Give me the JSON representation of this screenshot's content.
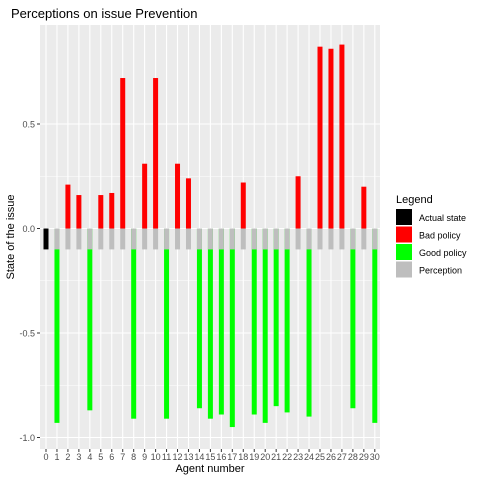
{
  "chart_data": {
    "type": "bar",
    "title": "Perceptions on issue Prevention",
    "xlabel": "Agent number",
    "ylabel": "State of the issue",
    "ylim": [
      -1.05,
      1.0
    ],
    "y_ticks": [
      {
        "value": 0.5,
        "label": "0.5"
      },
      {
        "value": 0.0,
        "label": "0.0"
      },
      {
        "value": -0.5,
        "label": "-0.5"
      },
      {
        "value": -1.0,
        "label": "-1.0"
      }
    ],
    "categories": [
      "0",
      "1",
      "2",
      "3",
      "4",
      "5",
      "6",
      "7",
      "8",
      "9",
      "10",
      "11",
      "12",
      "13",
      "14",
      "15",
      "16",
      "17",
      "18",
      "19",
      "20",
      "21",
      "22",
      "23",
      "24",
      "25",
      "26",
      "27",
      "28",
      "29",
      "30"
    ],
    "grid": true,
    "legend_position": "right",
    "legend_title": "Legend",
    "series": [
      {
        "name": "Actual state",
        "color": "#000000",
        "values": [
          -0.1,
          null,
          null,
          null,
          null,
          null,
          null,
          null,
          null,
          null,
          null,
          null,
          null,
          null,
          null,
          null,
          null,
          null,
          null,
          null,
          null,
          null,
          null,
          null,
          null,
          null,
          null,
          null,
          null,
          null,
          null
        ]
      },
      {
        "name": "Bad policy",
        "color": "#ff0000",
        "values": [
          null,
          null,
          0.21,
          0.16,
          null,
          0.16,
          0.17,
          0.72,
          null,
          0.31,
          0.72,
          null,
          0.31,
          0.24,
          null,
          null,
          null,
          null,
          0.22,
          null,
          null,
          null,
          null,
          0.25,
          null,
          0.87,
          0.86,
          0.88,
          null,
          0.2,
          null
        ]
      },
      {
        "name": "Good policy",
        "color": "#00ff00",
        "values": [
          null,
          -0.93,
          null,
          null,
          -0.87,
          null,
          null,
          null,
          -0.91,
          null,
          null,
          -0.91,
          null,
          null,
          -0.86,
          -0.91,
          -0.89,
          -0.95,
          null,
          -0.89,
          -0.93,
          -0.85,
          -0.88,
          null,
          -0.9,
          null,
          null,
          null,
          -0.86,
          null,
          -0.93
        ]
      },
      {
        "name": "Perception",
        "color": "#bebebe",
        "values": [
          null,
          -0.1,
          -0.1,
          -0.1,
          -0.1,
          -0.1,
          -0.1,
          -0.1,
          -0.1,
          -0.1,
          -0.1,
          -0.1,
          -0.1,
          -0.1,
          -0.1,
          -0.1,
          -0.1,
          -0.1,
          -0.1,
          -0.1,
          -0.1,
          -0.1,
          -0.1,
          -0.1,
          -0.1,
          -0.1,
          -0.1,
          -0.1,
          -0.1,
          -0.1,
          -0.1
        ]
      }
    ]
  },
  "colors": {
    "panel_background": "#ebebeb",
    "grid_major": "#ffffff"
  }
}
